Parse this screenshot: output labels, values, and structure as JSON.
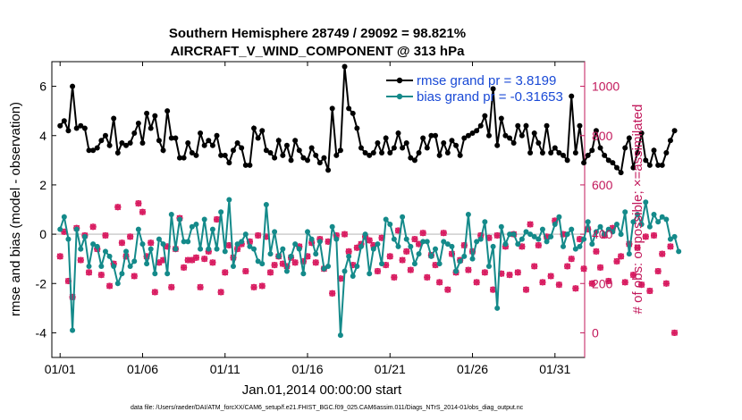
{
  "chart_data": {
    "type": "line",
    "title": "Southern Hemisphere 28749 / 29092 = 98.821%",
    "subtitle": "AIRCRAFT_V_WIND_COMPONENT @ 313 hPa",
    "xlabel": "Jan.01,2014 00:00:00 start",
    "ylabel_left": "rmse and bias (model - observation)",
    "ylabel_right": "# of obs: o=possible; ×=assimilated",
    "x_ticks": [
      "01/01",
      "01/06",
      "01/11",
      "01/16",
      "01/21",
      "01/26",
      "01/31"
    ],
    "x_tick_days": [
      0,
      5,
      10,
      15,
      20,
      25,
      30
    ],
    "xlim": [
      -0.5,
      31.8
    ],
    "y_left_ticks": [
      -4,
      -2,
      0,
      2,
      4,
      6
    ],
    "ylim_left": [
      -5,
      7
    ],
    "y_right_ticks": [
      0,
      200,
      400,
      600,
      800,
      1000
    ],
    "ylim_right": [
      -100,
      1100
    ],
    "grid": false,
    "legend_position": "top-right",
    "footnote": "data file: /Users/raeder/DAI/ATM_forcXX/CAM6_setup/f.e21.FHIST_BGC.f09_025.CAM6assim.011/Diags_NTrS_2014-01/obs_diag_output.nc",
    "colors": {
      "rmse": "#000000",
      "bias": "#148a8a",
      "obs": "#d81b60",
      "legend_text": "#1a4ad6",
      "right_axis": "#c2185b",
      "zero_line": "#bdbdbd"
    },
    "series": [
      {
        "name": "rmse grand pr = 3.8199",
        "axis": "left",
        "x_start_day": 0,
        "x_step_day": 0.25,
        "values": [
          4.4,
          4.6,
          4.2,
          6.0,
          4.3,
          4.4,
          4.3,
          3.4,
          3.4,
          3.5,
          3.8,
          4.0,
          3.6,
          4.7,
          3.3,
          3.7,
          3.6,
          3.7,
          4.1,
          4.5,
          3.7,
          4.9,
          4.3,
          4.8,
          3.8,
          3.4,
          5.0,
          3.9,
          3.9,
          3.1,
          3.1,
          3.7,
          3.3,
          3.2,
          4.1,
          3.6,
          3.8,
          3.6,
          4.0,
          3.2,
          3.2,
          2.9,
          3.4,
          3.7,
          3.5,
          2.8,
          2.8,
          4.3,
          3.9,
          4.2,
          3.4,
          3.3,
          3.1,
          3.8,
          3.2,
          3.6,
          3.0,
          3.8,
          3.4,
          3.1,
          3.0,
          3.5,
          3.2,
          2.9,
          3.1,
          2.6,
          5.1,
          3.2,
          3.4,
          6.8,
          5.1,
          4.9,
          4.3,
          3.5,
          3.3,
          3.2,
          3.3,
          3.7,
          3.3,
          3.9,
          3.3,
          3.5,
          4.1,
          3.5,
          3.7,
          3.1,
          3.0,
          3.3,
          3.9,
          3.5,
          4.0,
          4.0,
          3.2,
          3.7,
          3.3,
          3.8,
          3.6,
          3.2,
          3.9,
          4.0,
          4.1,
          4.2,
          4.4,
          4.8,
          4.0,
          5.9,
          3.6,
          4.7,
          4.0,
          3.9,
          3.7,
          4.4,
          4.0,
          4.4,
          3.3,
          4.1,
          3.7,
          3.3,
          4.4,
          3.3,
          3.5,
          3.3,
          3.2,
          3.0,
          5.6,
          3.3,
          4.4,
          2.9,
          3.2,
          3.4,
          4.2,
          3.5,
          3.2,
          3.0,
          2.9,
          2.7,
          2.5,
          3.5,
          3.9,
          2.7,
          3.3,
          4.1,
          3.0,
          2.8,
          3.4,
          2.8,
          2.8,
          3.3,
          3.8,
          4.2
        ]
      },
      {
        "name": "bias grand pr = -0.31653",
        "axis": "left",
        "x_start_day": 0,
        "x_step_day": 0.25,
        "values": [
          0.2,
          0.7,
          -0.2,
          -3.9,
          0.2,
          -0.6,
          -0.1,
          -1.3,
          -0.4,
          -0.5,
          -1.3,
          -0.7,
          -0.9,
          -1.3,
          -2.0,
          -1.6,
          -0.7,
          -1.3,
          -1.1,
          0.2,
          -0.4,
          -1.2,
          -0.6,
          -1.6,
          -0.2,
          -0.4,
          -1.6,
          0.8,
          -0.6,
          0.6,
          -0.3,
          -0.3,
          0.3,
          0.4,
          -0.6,
          0.6,
          -0.6,
          0.2,
          -0.6,
          0.9,
          -0.7,
          1.4,
          -1.3,
          -0.4,
          -0.3,
          0.0,
          -0.5,
          -0.6,
          -1.1,
          -1.2,
          1.2,
          -0.8,
          0.1,
          -0.9,
          -0.6,
          -1.5,
          -0.9,
          -0.4,
          -0.6,
          -1.6,
          0.1,
          -0.2,
          -0.8,
          -0.3,
          -1.4,
          -1.3,
          0.3,
          -0.2,
          -4.1,
          -1.5,
          -0.9,
          -1.7,
          -1.3,
          -0.5,
          0.0,
          -1.6,
          -0.6,
          -0.4,
          -1.2,
          0.6,
          0.4,
          -0.2,
          -0.5,
          0.7,
          -0.2,
          -0.5,
          -1.2,
          -0.8,
          -0.3,
          -0.3,
          -0.9,
          -0.6,
          -1.2,
          -0.3,
          -0.4,
          -0.5,
          -1.5,
          -1.1,
          -0.9,
          0.8,
          -1.0,
          -0.3,
          -0.2,
          0.5,
          -1.3,
          -0.5,
          -3.0,
          0.3,
          -0.4,
          0.0,
          0.0,
          -0.4,
          -0.2,
          0.1,
          0.0,
          -0.1,
          -0.2,
          0.2,
          -0.3,
          -0.1,
          0.4,
          0.7,
          -0.5,
          0.0,
          0.2,
          -0.6,
          -0.5,
          -0.2,
          0.5,
          -0.4,
          0.1,
          0.3,
          0.0,
          0.2,
          0.1,
          0.4,
          0.0,
          0.9,
          -0.8,
          0.5,
          0.8,
          0.4,
          1.3,
          0.3,
          0.8,
          0.5,
          0.7,
          0.6,
          -0.2,
          -0.1,
          -0.7
        ]
      },
      {
        "name": "# of obs (possible / assimilated)",
        "axis": "right",
        "x_start_day": 0,
        "x_step_day": 0.25,
        "values": [
          310,
          410,
          210,
          145,
          425,
          295,
          395,
          245,
          430,
          340,
          235,
          395,
          190,
          280,
          510,
          365,
          310,
          390,
          230,
          525,
          490,
          310,
          365,
          165,
          285,
          295,
          350,
          185,
          340,
          465,
          265,
          295,
          295,
          305,
          185,
          300,
          330,
          285,
          460,
          165,
          245,
          355,
          305,
          340,
          360,
          250,
          370,
          185,
          395,
          190,
          390,
          245,
          275,
          310,
          280,
          270,
          305,
          285,
          350,
          290,
          310,
          365,
          285,
          380,
          260,
          370,
          160,
          395,
          220,
          400,
          330,
          275,
          345,
          360,
          390,
          375,
          355,
          250,
          385,
          275,
          310,
          225,
          415,
          295,
          330,
          255,
          380,
          360,
          405,
          225,
          315,
          275,
          205,
          405,
          175,
          320,
          245,
          295,
          355,
          255,
          330,
          205,
          395,
          245,
          385,
          175,
          395,
          240,
          350,
          235,
          400,
          245,
          350,
          175,
          440,
          270,
          355,
          205,
          390,
          230,
          455,
          195,
          400,
          270,
          300,
          180,
          380,
          260,
          420,
          200,
          330,
          265,
          395,
          210,
          425,
          290,
          310,
          205,
          360,
          235,
          345,
          195,
          390,
          170,
          395,
          250,
          320,
          200,
          350,
          0
        ]
      }
    ],
    "annotations": [
      {
        "text": "o",
        "series": "# of obs",
        "meaning": "possible"
      },
      {
        "text": "×",
        "series": "# of obs",
        "meaning": "assimilated"
      }
    ]
  }
}
